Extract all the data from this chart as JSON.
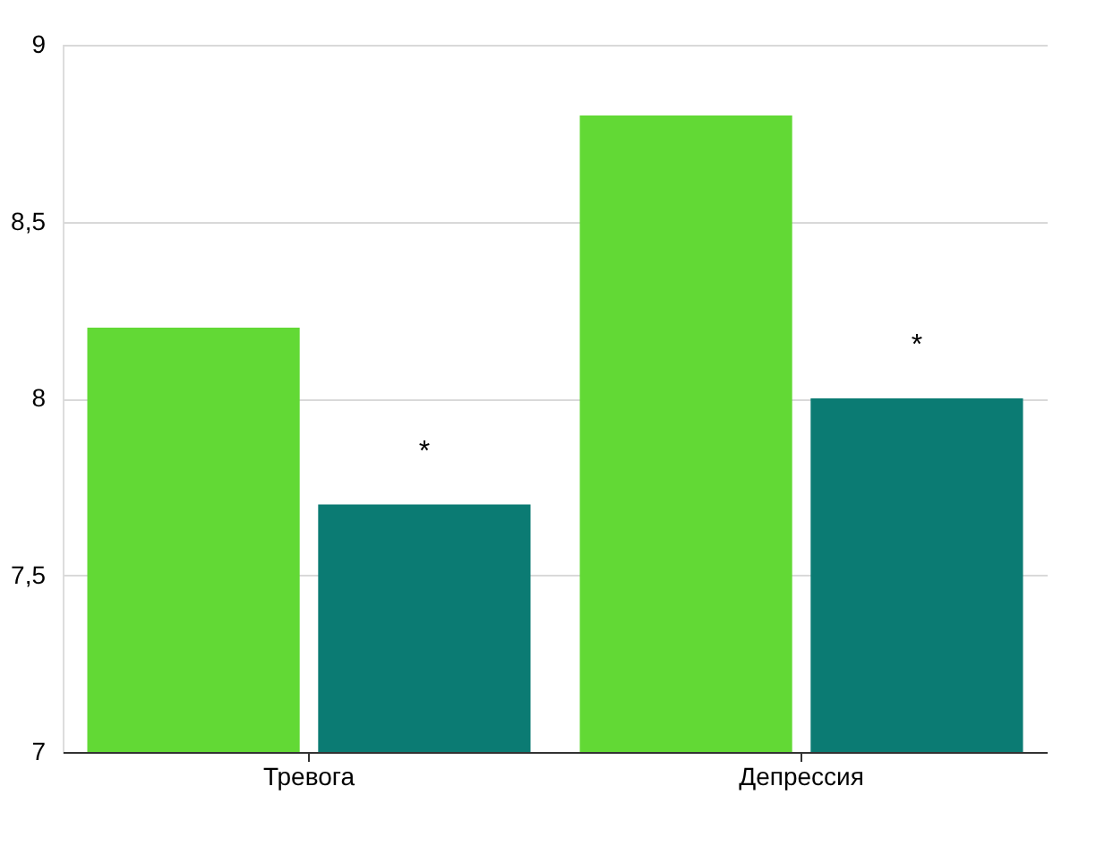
{
  "chart_data": {
    "type": "bar",
    "categories": [
      "Тревога",
      "Депрессия"
    ],
    "series": [
      {
        "color": "#62d935",
        "values": [
          8.2,
          8.8
        ]
      },
      {
        "color": "#0b7b73",
        "values": [
          7.7,
          8.0
        ]
      }
    ],
    "ylim": [
      7,
      9
    ],
    "yticks": [
      {
        "value": 7,
        "label": "7"
      },
      {
        "value": 7.5,
        "label": "7,5"
      },
      {
        "value": 8,
        "label": "8"
      },
      {
        "value": 8.5,
        "label": "8,5"
      },
      {
        "value": 9,
        "label": "9"
      }
    ],
    "grid": "y",
    "annotations": [
      "*",
      "*"
    ]
  }
}
